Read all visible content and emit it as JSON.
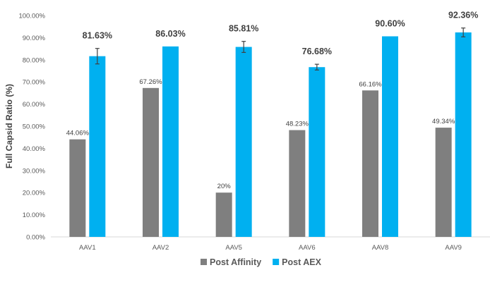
{
  "chart_data": {
    "type": "bar",
    "title": "",
    "xlabel": "",
    "ylabel": "Full Capsid Ratio (%)",
    "ylim": [
      0,
      100
    ],
    "y_ticks": [
      "0.00%",
      "10.00%",
      "20.00%",
      "30.00%",
      "40.00%",
      "50.00%",
      "60.00%",
      "70.00%",
      "80.00%",
      "90.00%",
      "100.00%"
    ],
    "grid": false,
    "legend_position": "bottom",
    "categories": [
      "AAV1",
      "AAV2",
      "AAV5",
      "AAV6",
      "AAV8",
      "AAV9"
    ],
    "series": [
      {
        "name": "Post Affinity",
        "color": "#7f7f7f",
        "values": [
          44.06,
          67.26,
          20,
          48.23,
          66.16,
          49.34
        ],
        "labels": [
          "44.06%",
          "67.26%",
          "20%",
          "48.23%",
          "66.16%",
          "49.34%"
        ],
        "errors": [
          null,
          null,
          null,
          null,
          null,
          null
        ]
      },
      {
        "name": "Post AEX",
        "color": "#00b0f0",
        "values": [
          81.63,
          86.03,
          85.81,
          76.68,
          90.6,
          92.36
        ],
        "labels": [
          "81.63%",
          "86.03%",
          "85.81%",
          "76.68%",
          "90.60%",
          "92.36%"
        ],
        "errors": [
          3.5,
          null,
          2.5,
          1.3,
          null,
          2.0
        ]
      }
    ]
  }
}
